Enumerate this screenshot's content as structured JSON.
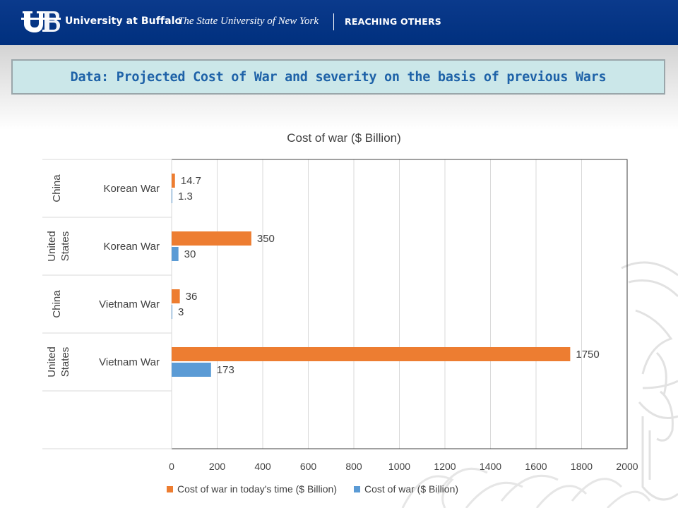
{
  "header": {
    "university": "University at Buffalo",
    "suny": "The State University of New York",
    "tagline": "REACHING OTHERS"
  },
  "slide": {
    "title": "Data: Projected Cost of War and severity on the basis of previous Wars"
  },
  "colors": {
    "header_bg": "#00307e",
    "title_box_bg": "#cbe7e9",
    "title_text": "#1e62a8",
    "series_today": "#ed7d31",
    "series_cost": "#5b9bd5"
  },
  "chart_data": {
    "type": "bar",
    "orientation": "horizontal",
    "title": "Cost of war ($ Billion)",
    "categories": [
      {
        "group": "China",
        "label": "Korean War"
      },
      {
        "group": "United States",
        "label": "Korean War"
      },
      {
        "group": "China",
        "label": "Vietnam War"
      },
      {
        "group": "United States",
        "label": "Vietnam War"
      }
    ],
    "series": [
      {
        "name": "Cost of war in today's time ($ Billion)",
        "values": [
          14.7,
          350,
          36,
          1750
        ],
        "labels": [
          "14.7",
          "350",
          "36",
          "1750"
        ]
      },
      {
        "name": "Cost of war ($ Billion)",
        "values": [
          1.3,
          30,
          3,
          173
        ],
        "labels": [
          "1.3",
          "30",
          "3",
          "173"
        ]
      }
    ],
    "xlim": [
      0,
      2000
    ],
    "xticks": [
      "0",
      "200",
      "400",
      "600",
      "800",
      "1000",
      "1200",
      "1400",
      "1600",
      "1800",
      "2000"
    ],
    "grid": true,
    "legend_position": "bottom"
  }
}
